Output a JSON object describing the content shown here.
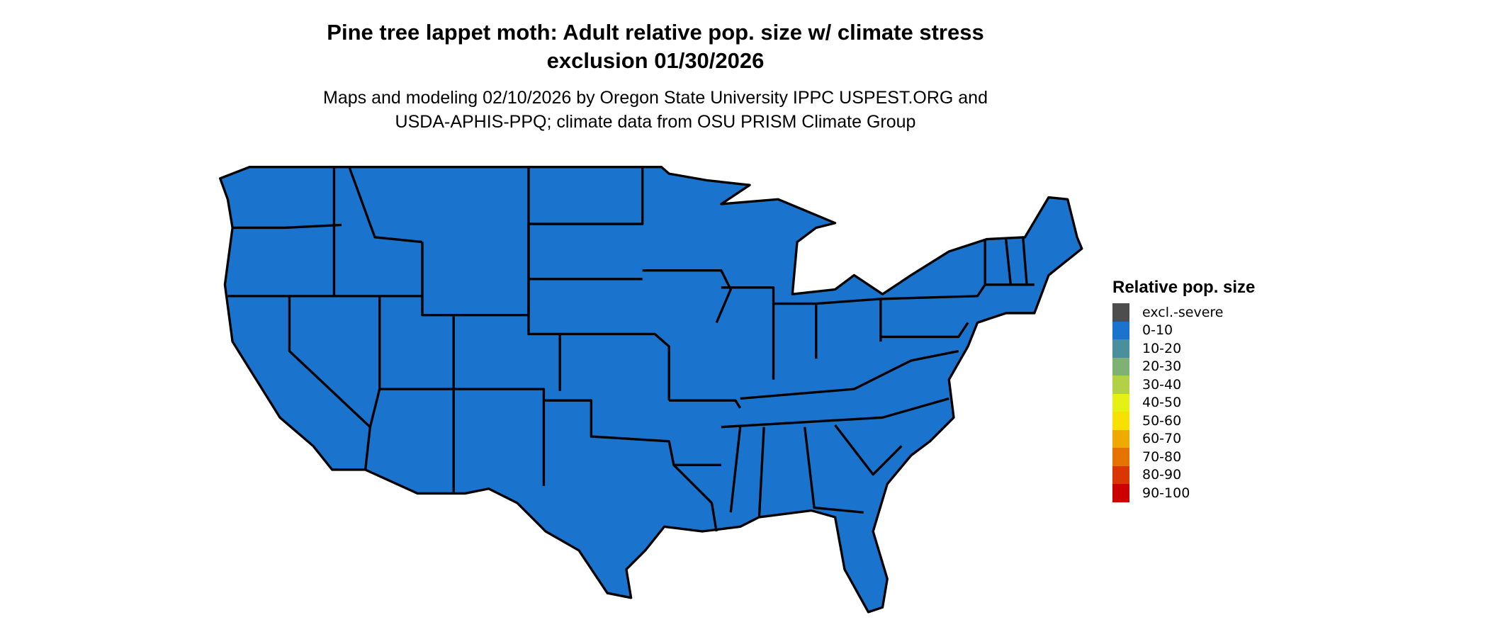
{
  "title_line1": "Pine tree lappet moth: Adult relative pop. size w/ climate stress",
  "title_line2": "exclusion 01/30/2026",
  "subtitle_line1": "Maps and modeling 02/10/2026 by Oregon State University IPPC USPEST.ORG and",
  "subtitle_line2": "USDA-APHIS-PPQ; climate data from OSU PRISM Climate Group",
  "map": {
    "region": "Contiguous United States",
    "fill_category": "0-10",
    "fill_color": "#1a73cc",
    "border_color": "#000000"
  },
  "legend": {
    "title": "Relative pop. size",
    "items": [
      {
        "label": "excl.-severe",
        "color": "#4d4d4d"
      },
      {
        "label": "0-10",
        "color": "#1a73cc"
      },
      {
        "label": "10-20",
        "color": "#4a8f9c"
      },
      {
        "label": "20-30",
        "color": "#7fb074"
      },
      {
        "label": "30-40",
        "color": "#b2d145"
      },
      {
        "label": "40-50",
        "color": "#e5f014"
      },
      {
        "label": "50-60",
        "color": "#f7e100"
      },
      {
        "label": "60-70",
        "color": "#efaa00"
      },
      {
        "label": "70-80",
        "color": "#e57300"
      },
      {
        "label": "80-90",
        "color": "#d93600"
      },
      {
        "label": "90-100",
        "color": "#cc0000"
      }
    ]
  }
}
